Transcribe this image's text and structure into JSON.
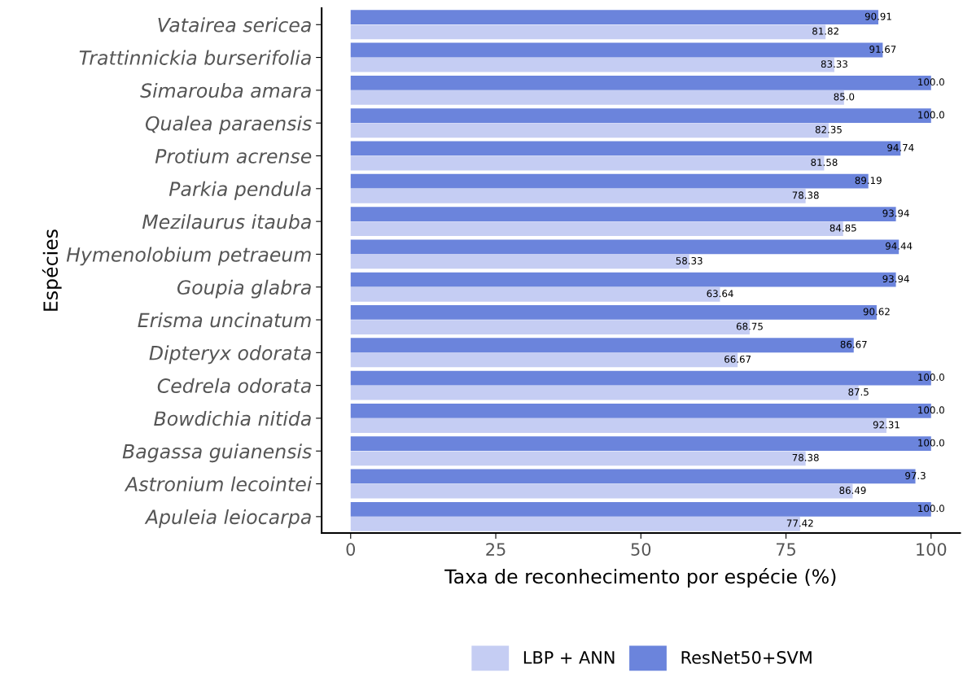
{
  "chart_data": {
    "type": "bar",
    "orientation": "horizontal",
    "xlabel": "Taxa de reconhecimento por espécie (%)",
    "ylabel": "Espécies",
    "categories": [
      "Vatairea sericea",
      "Trattinnickia burserifolia",
      "Simarouba amara",
      "Qualea paraensis",
      "Protium acrense",
      "Parkia pendula",
      "Mezilaurus itauba",
      "Hymenolobium petraeum",
      "Goupia glabra",
      "Erisma uncinatum",
      "Dipteryx odorata",
      "Cedrela odorata",
      "Bowdichia nitida",
      "Bagassa guianensis",
      "Astronium lecointei",
      "Apuleia leiocarpa"
    ],
    "series": [
      {
        "name": "LBP + ANN",
        "color": "#c5cdf3",
        "values": [
          81.82,
          83.33,
          85.0,
          82.35,
          81.58,
          78.38,
          84.85,
          58.33,
          63.64,
          68.75,
          66.67,
          87.5,
          92.31,
          78.38,
          86.49,
          77.42
        ],
        "value_labels": [
          "81.82",
          "83.33",
          "85.0",
          "82.35",
          "81.58",
          "78.38",
          "84.85",
          "58.33",
          "63.64",
          "68.75",
          "66.67",
          "87.5",
          "92.31",
          "78.38",
          "86.49",
          "77.42"
        ]
      },
      {
        "name": "ResNet50+SVM",
        "color": "#6b84dc",
        "values": [
          90.91,
          91.67,
          100.0,
          100.0,
          94.74,
          89.19,
          93.94,
          94.44,
          93.94,
          90.62,
          86.67,
          100.0,
          100.0,
          100.0,
          97.3,
          100.0
        ],
        "value_labels": [
          "90.91",
          "91.67",
          "100.0",
          "100.0",
          "94.74",
          "89.19",
          "93.94",
          "94.44",
          "93.94",
          "90.62",
          "86.67",
          "100.0",
          "100.0",
          "100.0",
          "97.3",
          "100.0"
        ]
      }
    ],
    "xlim": [
      -5,
      105
    ],
    "xticks": [
      0,
      25,
      50,
      75,
      100
    ],
    "grid": false,
    "legend": "bottom"
  }
}
